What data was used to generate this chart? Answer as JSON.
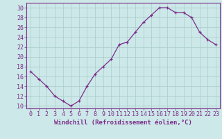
{
  "x": [
    0,
    1,
    2,
    3,
    4,
    5,
    6,
    7,
    8,
    9,
    10,
    11,
    12,
    13,
    14,
    15,
    16,
    17,
    18,
    19,
    20,
    21,
    22,
    23
  ],
  "y": [
    17,
    15.5,
    14,
    12,
    11,
    10,
    11,
    14,
    16.5,
    18,
    19.5,
    22.5,
    23,
    25,
    27,
    28.5,
    30,
    30,
    29,
    29,
    28,
    25,
    23.5,
    22.5
  ],
  "line_color": "#7b2d8b",
  "marker": "+",
  "bg_color": "#cce8e8",
  "grid_color": "#aacccc",
  "title": "",
  "xlabel": "Windchill (Refroidissement éolien,°C)",
  "ylabel": "",
  "xlim": [
    -0.5,
    23.5
  ],
  "ylim": [
    9.5,
    31
  ],
  "yticks": [
    10,
    12,
    14,
    16,
    18,
    20,
    22,
    24,
    26,
    28,
    30
  ],
  "xticks": [
    0,
    1,
    2,
    3,
    4,
    5,
    6,
    7,
    8,
    9,
    10,
    11,
    12,
    13,
    14,
    15,
    16,
    17,
    18,
    19,
    20,
    21,
    22,
    23
  ],
  "tick_color": "#7b2d8b",
  "label_color": "#7b2d8b",
  "spine_color": "#7b2d8b",
  "fontsize_xlabel": 6.5,
  "fontsize_ticks": 6.0,
  "linewidth": 0.9,
  "markersize": 3.0
}
